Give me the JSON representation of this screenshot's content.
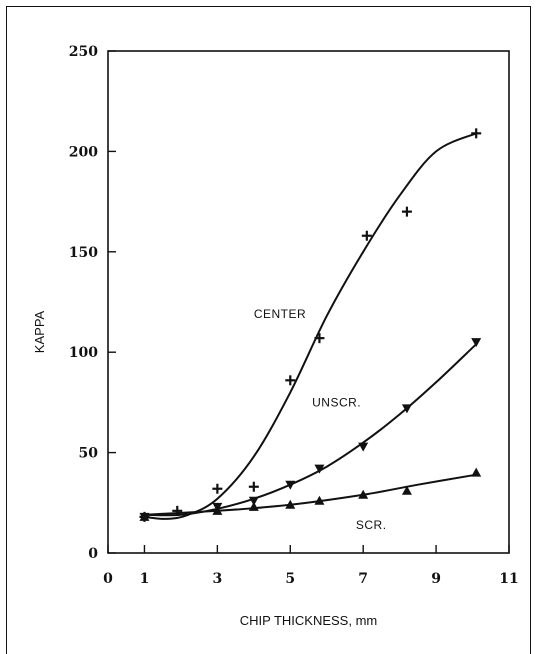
{
  "chart_data": {
    "type": "scatter",
    "title": "",
    "xlabel": "CHIP THICKNESS, mm",
    "ylabel": "KAPPA",
    "xlim": [
      0,
      11
    ],
    "ylim": [
      0,
      250
    ],
    "x_ticks": [
      "0",
      "1",
      "3",
      "5",
      "7",
      "9",
      "11"
    ],
    "x_tick_values": [
      0,
      1,
      3,
      5,
      7,
      9,
      11
    ],
    "y_ticks": [
      "0",
      "50",
      "100",
      "150",
      "200",
      "250"
    ],
    "y_tick_values": [
      0,
      50,
      100,
      150,
      200,
      250
    ],
    "grid": false,
    "series": [
      {
        "name": "CENTER",
        "marker": "plus",
        "points": [
          {
            "x": 1.0,
            "y": 18
          },
          {
            "x": 1.9,
            "y": 21
          },
          {
            "x": 3.0,
            "y": 32
          },
          {
            "x": 4.0,
            "y": 33
          },
          {
            "x": 5.0,
            "y": 86
          },
          {
            "x": 5.8,
            "y": 107
          },
          {
            "x": 7.1,
            "y": 158
          },
          {
            "x": 8.2,
            "y": 170
          },
          {
            "x": 10.1,
            "y": 209
          }
        ],
        "curve": [
          {
            "x": 1.0,
            "y": 18
          },
          {
            "x": 1.6,
            "y": 17
          },
          {
            "x": 2.2,
            "y": 19
          },
          {
            "x": 3.0,
            "y": 27
          },
          {
            "x": 4.0,
            "y": 48
          },
          {
            "x": 5.0,
            "y": 80
          },
          {
            "x": 6.0,
            "y": 118
          },
          {
            "x": 7.0,
            "y": 150
          },
          {
            "x": 8.0,
            "y": 178
          },
          {
            "x": 9.0,
            "y": 200
          },
          {
            "x": 10.1,
            "y": 209
          }
        ]
      },
      {
        "name": "UNSCR.",
        "marker": "triangle-down",
        "points": [
          {
            "x": 1.0,
            "y": 18
          },
          {
            "x": 3.0,
            "y": 23
          },
          {
            "x": 4.0,
            "y": 26
          },
          {
            "x": 5.0,
            "y": 34
          },
          {
            "x": 5.8,
            "y": 42
          },
          {
            "x": 7.0,
            "y": 53
          },
          {
            "x": 8.2,
            "y": 72
          },
          {
            "x": 10.1,
            "y": 105
          }
        ],
        "curve": [
          {
            "x": 1.0,
            "y": 19
          },
          {
            "x": 2.0,
            "y": 19
          },
          {
            "x": 3.0,
            "y": 22
          },
          {
            "x": 4.0,
            "y": 27
          },
          {
            "x": 5.0,
            "y": 34
          },
          {
            "x": 6.0,
            "y": 43
          },
          {
            "x": 7.0,
            "y": 55
          },
          {
            "x": 8.0,
            "y": 69
          },
          {
            "x": 9.0,
            "y": 85
          },
          {
            "x": 10.1,
            "y": 104
          }
        ]
      },
      {
        "name": "SCR.",
        "marker": "triangle-up",
        "points": [
          {
            "x": 1.0,
            "y": 18
          },
          {
            "x": 3.0,
            "y": 21
          },
          {
            "x": 4.0,
            "y": 23
          },
          {
            "x": 5.0,
            "y": 24
          },
          {
            "x": 5.8,
            "y": 26
          },
          {
            "x": 7.0,
            "y": 29
          },
          {
            "x": 8.2,
            "y": 31
          },
          {
            "x": 10.1,
            "y": 40
          }
        ],
        "curve": [
          {
            "x": 1.0,
            "y": 19
          },
          {
            "x": 3.0,
            "y": 21
          },
          {
            "x": 5.0,
            "y": 24
          },
          {
            "x": 7.0,
            "y": 29
          },
          {
            "x": 8.5,
            "y": 34
          },
          {
            "x": 10.1,
            "y": 39
          }
        ]
      }
    ],
    "annotations": [
      {
        "text": "CENTER",
        "x": 4.0,
        "y": 117
      },
      {
        "text": "UNSCR.",
        "x": 5.6,
        "y": 73
      },
      {
        "text": "SCR.",
        "x": 6.8,
        "y": 12
      }
    ]
  }
}
